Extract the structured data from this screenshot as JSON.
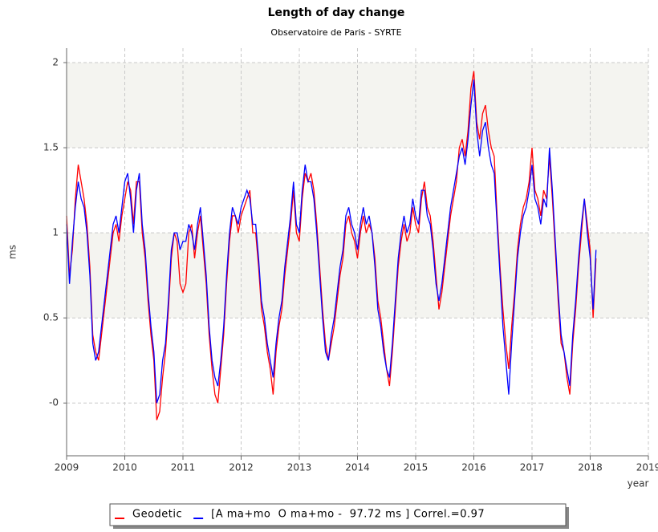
{
  "chart_data": {
    "type": "line",
    "title": "Length of day change",
    "subtitle": "Observatoire de Paris - SYRTE",
    "y_label": "ms",
    "x_label": "year",
    "xlim": [
      2009,
      2019
    ],
    "xticks": [
      2009,
      2010,
      2011,
      2012,
      2013,
      2014,
      2015,
      2016,
      2017,
      2018,
      2019
    ],
    "ylim": [
      -0.31,
      2.085
    ],
    "yticks": [
      {
        "value": 0,
        "label": "-0"
      },
      0.5,
      1,
      1.5,
      2
    ],
    "grid": true,
    "x": [
      2009,
      2009.05,
      2009.1,
      2009.15,
      2009.2,
      2009.25,
      2009.3,
      2009.35,
      2009.4,
      2009.45,
      2009.5,
      2009.55,
      2009.6,
      2009.65,
      2009.7,
      2009.75,
      2009.8,
      2009.85,
      2009.9,
      2009.95,
      2010,
      2010.05,
      2010.1,
      2010.15,
      2010.2,
      2010.25,
      2010.3,
      2010.35,
      2010.4,
      2010.45,
      2010.5,
      2010.55,
      2010.6,
      2010.65,
      2010.7,
      2010.75,
      2010.8,
      2010.85,
      2010.9,
      2010.95,
      2011,
      2011.05,
      2011.1,
      2011.15,
      2011.2,
      2011.25,
      2011.3,
      2011.35,
      2011.4,
      2011.45,
      2011.5,
      2011.55,
      2011.6,
      2011.65,
      2011.7,
      2011.75,
      2011.8,
      2011.85,
      2011.9,
      2011.95,
      2012,
      2012.05,
      2012.1,
      2012.15,
      2012.2,
      2012.25,
      2012.3,
      2012.35,
      2012.4,
      2012.45,
      2012.5,
      2012.55,
      2012.6,
      2012.65,
      2012.7,
      2012.75,
      2012.8,
      2012.85,
      2012.9,
      2012.95,
      2013,
      2013.05,
      2013.1,
      2013.15,
      2013.2,
      2013.25,
      2013.3,
      2013.35,
      2013.4,
      2013.45,
      2013.5,
      2013.55,
      2013.6,
      2013.65,
      2013.7,
      2013.75,
      2013.8,
      2013.85,
      2013.9,
      2013.95,
      2014,
      2014.05,
      2014.1,
      2014.15,
      2014.2,
      2014.25,
      2014.3,
      2014.35,
      2014.4,
      2014.45,
      2014.5,
      2014.55,
      2014.6,
      2014.65,
      2014.7,
      2014.75,
      2014.8,
      2014.85,
      2014.9,
      2014.95,
      2015,
      2015.05,
      2015.1,
      2015.15,
      2015.2,
      2015.25,
      2015.3,
      2015.35,
      2015.4,
      2015.45,
      2015.5,
      2015.55,
      2015.6,
      2015.65,
      2015.7,
      2015.75,
      2015.8,
      2015.85,
      2015.9,
      2015.95,
      2016,
      2016.05,
      2016.1,
      2016.15,
      2016.2,
      2016.25,
      2016.3,
      2016.35,
      2016.4,
      2016.45,
      2016.5,
      2016.55,
      2016.6,
      2016.65,
      2016.7,
      2016.75,
      2016.8,
      2016.85,
      2016.9,
      2016.95,
      2017,
      2017.05,
      2017.1,
      2017.15,
      2017.2,
      2017.25,
      2017.3,
      2017.35,
      2017.4,
      2017.45,
      2017.5,
      2017.55,
      2017.6,
      2017.65,
      2017.7,
      2017.75,
      2017.8,
      2017.85,
      2017.9,
      2017.95,
      2018,
      2018.05,
      2018.1
    ],
    "series": [
      {
        "name": "Geodetic",
        "color": "#ff0000",
        "values": [
          1.1,
          0.75,
          0.9,
          1.2,
          1.4,
          1.3,
          1.2,
          1.05,
          0.8,
          0.4,
          0.3,
          0.25,
          0.4,
          0.55,
          0.7,
          0.85,
          1.0,
          1.05,
          0.95,
          1.1,
          1.2,
          1.3,
          1.25,
          1.05,
          1.3,
          1.3,
          1.0,
          0.85,
          0.6,
          0.4,
          0.25,
          -0.1,
          -0.05,
          0.15,
          0.3,
          0.55,
          0.85,
          1.0,
          0.95,
          0.7,
          0.65,
          0.7,
          1.0,
          1.05,
          0.85,
          1.0,
          1.1,
          0.9,
          0.7,
          0.4,
          0.2,
          0.05,
          0.0,
          0.2,
          0.4,
          0.7,
          0.95,
          1.1,
          1.1,
          1.0,
          1.1,
          1.15,
          1.2,
          1.25,
          1.0,
          1.0,
          0.8,
          0.55,
          0.45,
          0.3,
          0.2,
          0.05,
          0.3,
          0.45,
          0.55,
          0.75,
          0.9,
          1.05,
          1.25,
          1.0,
          0.95,
          1.2,
          1.35,
          1.3,
          1.35,
          1.25,
          1.05,
          0.8,
          0.55,
          0.35,
          0.25,
          0.35,
          0.45,
          0.6,
          0.75,
          0.85,
          1.05,
          1.1,
          1.0,
          0.95,
          0.85,
          1.0,
          1.1,
          1.0,
          1.05,
          1.0,
          0.85,
          0.6,
          0.5,
          0.35,
          0.2,
          0.1,
          0.3,
          0.55,
          0.8,
          0.95,
          1.05,
          0.95,
          1.0,
          1.15,
          1.05,
          1.0,
          1.2,
          1.3,
          1.15,
          1.1,
          0.95,
          0.75,
          0.55,
          0.65,
          0.8,
          0.95,
          1.1,
          1.2,
          1.3,
          1.5,
          1.55,
          1.45,
          1.6,
          1.85,
          1.95,
          1.65,
          1.55,
          1.7,
          1.75,
          1.6,
          1.5,
          1.45,
          1.1,
          0.8,
          0.55,
          0.35,
          0.2,
          0.45,
          0.65,
          0.9,
          1.05,
          1.15,
          1.2,
          1.3,
          1.5,
          1.25,
          1.2,
          1.1,
          1.25,
          1.2,
          1.45,
          1.2,
          0.9,
          0.6,
          0.35,
          0.3,
          0.15,
          0.05,
          0.35,
          0.55,
          0.8,
          1.0,
          1.2,
          1.05,
          0.9,
          0.5,
          0.85
        ]
      },
      {
        "name": "[A ma+mo  O ma+mo -  97.72 ms ] Correl.=0.97",
        "color": "#0000ff",
        "values": [
          1.05,
          0.7,
          0.95,
          1.15,
          1.3,
          1.2,
          1.15,
          1.0,
          0.75,
          0.35,
          0.25,
          0.3,
          0.45,
          0.6,
          0.75,
          0.9,
          1.05,
          1.1,
          1.0,
          1.15,
          1.3,
          1.35,
          1.2,
          1.0,
          1.25,
          1.35,
          1.05,
          0.9,
          0.65,
          0.45,
          0.3,
          0.0,
          0.05,
          0.25,
          0.35,
          0.6,
          0.9,
          1.0,
          1.0,
          0.9,
          0.95,
          0.95,
          1.05,
          1.0,
          0.9,
          1.05,
          1.15,
          0.95,
          0.75,
          0.45,
          0.25,
          0.15,
          0.1,
          0.25,
          0.45,
          0.75,
          1.0,
          1.15,
          1.1,
          1.05,
          1.15,
          1.2,
          1.25,
          1.2,
          1.05,
          1.05,
          0.85,
          0.6,
          0.5,
          0.35,
          0.25,
          0.15,
          0.35,
          0.5,
          0.6,
          0.8,
          0.95,
          1.1,
          1.3,
          1.05,
          1.0,
          1.25,
          1.4,
          1.3,
          1.3,
          1.2,
          1.0,
          0.75,
          0.5,
          0.3,
          0.25,
          0.4,
          0.5,
          0.65,
          0.8,
          0.9,
          1.1,
          1.15,
          1.05,
          1.0,
          0.9,
          1.05,
          1.15,
          1.05,
          1.1,
          1.0,
          0.8,
          0.55,
          0.45,
          0.3,
          0.2,
          0.15,
          0.35,
          0.6,
          0.85,
          1.0,
          1.1,
          1.0,
          1.05,
          1.2,
          1.1,
          1.05,
          1.25,
          1.25,
          1.1,
          1.05,
          0.9,
          0.7,
          0.6,
          0.7,
          0.85,
          1.0,
          1.15,
          1.25,
          1.35,
          1.45,
          1.5,
          1.4,
          1.55,
          1.75,
          1.9,
          1.6,
          1.45,
          1.6,
          1.65,
          1.5,
          1.4,
          1.35,
          1.05,
          0.75,
          0.45,
          0.25,
          0.05,
          0.35,
          0.6,
          0.85,
          1.0,
          1.1,
          1.15,
          1.25,
          1.4,
          1.2,
          1.15,
          1.05,
          1.2,
          1.15,
          1.5,
          1.25,
          0.95,
          0.65,
          0.4,
          0.3,
          0.2,
          0.1,
          0.4,
          0.6,
          0.85,
          1.05,
          1.2,
          1.0,
          0.85,
          0.55,
          0.9
        ]
      }
    ]
  }
}
